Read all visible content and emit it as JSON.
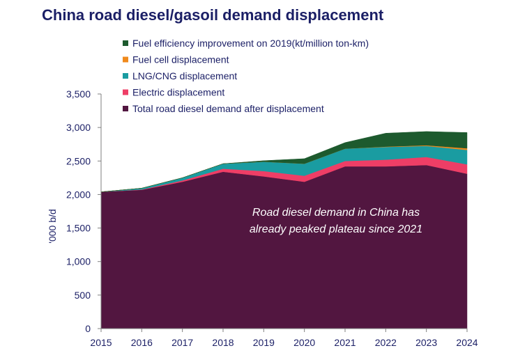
{
  "chart_data": {
    "type": "area",
    "title": "China road diesel/gasoil demand displacement",
    "ylabel": "'000 b/d",
    "xlabel": "",
    "ylim": [
      0,
      3500
    ],
    "yticks": [
      0,
      500,
      1000,
      1500,
      2000,
      2500,
      3000,
      3500
    ],
    "x": [
      2015,
      2016,
      2017,
      2018,
      2019,
      2020,
      2021,
      2022,
      2023,
      2024
    ],
    "series": [
      {
        "name": "Total road diesel demand after displacement",
        "color": "#521640",
        "values": [
          2040,
          2070,
          2190,
          2340,
          2270,
          2190,
          2420,
          2420,
          2440,
          2310
        ]
      },
      {
        "name": "Electric displacement",
        "color": "#ee3e66",
        "values": [
          0,
          5,
          20,
          45,
          80,
          90,
          80,
          100,
          120,
          140
        ]
      },
      {
        "name": "LNG/CNG displacement",
        "color": "#1a9ca1",
        "values": [
          0,
          20,
          40,
          75,
          140,
          180,
          185,
          190,
          165,
          215
        ]
      },
      {
        "name": "Fuel cell displacement",
        "color": "#f08a1c",
        "values": [
          0,
          0,
          0,
          0,
          0,
          0,
          0,
          5,
          10,
          25
        ]
      },
      {
        "name": "Fuel efficiency improvement on 2019(kt/million ton-km)",
        "color": "#1d5a2e",
        "values": [
          0,
          0,
          0,
          0,
          15,
          75,
          90,
          200,
          205,
          235
        ]
      }
    ],
    "legend_placement": "top",
    "grid": false,
    "annotation": [
      "Road diesel demand in China has",
      "already peaked plateau since 2021"
    ]
  }
}
